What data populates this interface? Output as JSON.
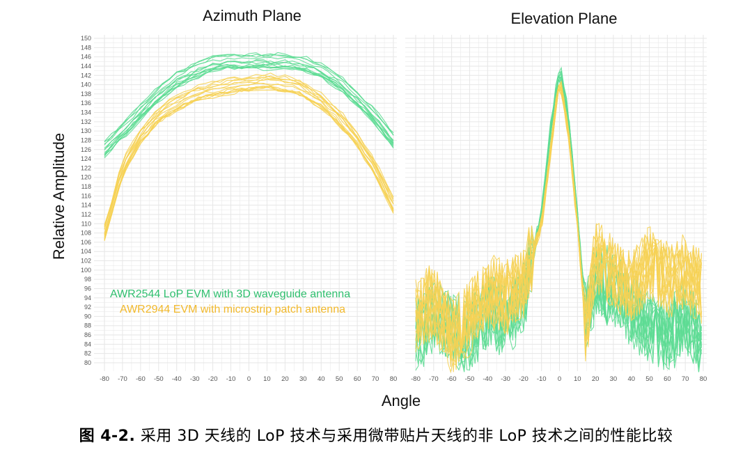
{
  "figure": {
    "caption_label": "图 4-2.",
    "caption_text": "采用 3D 天线的 LoP 技术与采用微带贴片天线的非 LoP 技术之间的性能比较"
  },
  "colors": {
    "green": "#5ddc93",
    "yellow": "#f6d255",
    "grid": "#e6e6e6",
    "tick": "#555555"
  },
  "chart_data": [
    {
      "type": "line",
      "title": "Azimuth Plane",
      "xlabel": "Angle",
      "ylabel": "Relative Amplitude",
      "xlim": [
        -80,
        80
      ],
      "ylim": [
        80,
        150
      ],
      "x_ticks": [
        -80,
        -70,
        -60,
        -50,
        -40,
        -30,
        -20,
        -10,
        0,
        10,
        20,
        30,
        40,
        50,
        60,
        70,
        80
      ],
      "y_ticks": [
        80,
        82,
        84,
        86,
        88,
        90,
        92,
        94,
        96,
        98,
        100,
        102,
        104,
        106,
        108,
        110,
        112,
        114,
        116,
        118,
        120,
        122,
        124,
        126,
        128,
        130,
        132,
        134,
        136,
        138,
        140,
        142,
        144,
        146,
        148,
        150
      ],
      "grid": true,
      "legend": [
        "AWR2544 LoP EVM with 3D waveguide antenna",
        "AWR2944 EVM with microstrip patch antenna"
      ],
      "legend_position": "lower-left",
      "series": [
        {
          "name": "AWR2544 LoP EVM with 3D waveguide antenna",
          "color": "green",
          "x": [
            -80,
            -70,
            -60,
            -50,
            -40,
            -30,
            -20,
            -10,
            0,
            10,
            20,
            30,
            40,
            50,
            60,
            70,
            80
          ],
          "y": [
            126,
            130,
            134,
            138,
            141,
            143,
            144.5,
            145,
            145,
            145,
            145,
            144.5,
            143,
            140.5,
            137,
            133,
            128
          ]
        },
        {
          "name": "AWR2944 EVM with microstrip patch antenna",
          "color": "yellow",
          "x": [
            -80,
            -70,
            -60,
            -50,
            -40,
            -30,
            -20,
            -10,
            0,
            10,
            20,
            30,
            40,
            50,
            60,
            70,
            80
          ],
          "y": [
            108,
            122,
            129,
            133.5,
            136,
            138,
            139,
            139.8,
            140.2,
            140.7,
            140.2,
            139,
            136.5,
            133,
            128,
            122,
            114
          ]
        }
      ]
    },
    {
      "type": "line",
      "title": "Elevation Plane",
      "xlim": [
        -80,
        80
      ],
      "ylim": [
        80,
        150
      ],
      "x_ticks": [
        -80,
        -70,
        -60,
        -50,
        -40,
        -30,
        -20,
        -10,
        0,
        10,
        20,
        30,
        40,
        50,
        60,
        70,
        80
      ],
      "grid": true,
      "series": [
        {
          "name": "AWR2544 LoP EVM with 3D waveguide antenna",
          "color": "green",
          "x": [
            -80,
            -70,
            -60,
            -50,
            -40,
            -30,
            -20,
            -10,
            -5,
            0,
            5,
            10,
            15,
            20,
            30,
            40,
            50,
            60,
            70,
            80
          ],
          "y": [
            86,
            90,
            88,
            86,
            91,
            90,
            94,
            112,
            130,
            144,
            133,
            112,
            88,
            98,
            96,
            92,
            88,
            86,
            90,
            84
          ]
        },
        {
          "name": "AWR2944 EVM with microstrip patch antenna",
          "color": "yellow",
          "x": [
            -80,
            -70,
            -60,
            -50,
            -40,
            -30,
            -20,
            -10,
            -5,
            0,
            5,
            10,
            15,
            20,
            30,
            40,
            50,
            60,
            70,
            80
          ],
          "y": [
            90,
            94,
            86,
            90,
            96,
            94,
            98,
            110,
            126,
            142,
            130,
            110,
            86,
            104,
            100,
            96,
            102,
            98,
            100,
            96
          ]
        }
      ]
    }
  ]
}
